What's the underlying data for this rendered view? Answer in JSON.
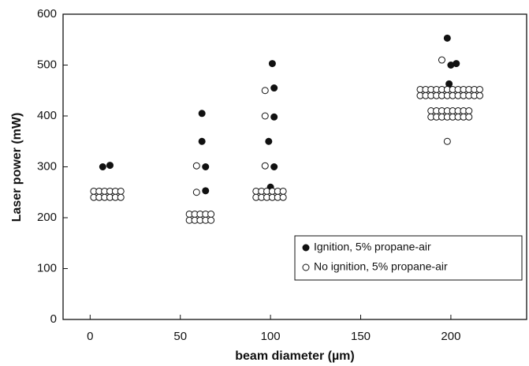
{
  "chart_data": {
    "type": "scatter",
    "x_label": "beam diameter (µm)",
    "y_label": "Laser power (mW)",
    "xlim": [
      -15,
      242
    ],
    "ylim": [
      0,
      600
    ],
    "xticks": [
      0,
      50,
      100,
      150,
      200
    ],
    "yticks": [
      0,
      100,
      200,
      300,
      400,
      500,
      600
    ],
    "legend": "lower right",
    "series": [
      {
        "name": "Ignition, 5% propane-air",
        "color": "#111111",
        "filled": true,
        "x": [
          7,
          11,
          62,
          62,
          64,
          64,
          101,
          102,
          102,
          99,
          102,
          100,
          198,
          200,
          203,
          199,
          199
        ],
        "y": [
          300,
          303,
          405,
          350,
          300,
          253,
          503,
          455,
          398,
          350,
          300,
          260,
          553,
          500,
          503,
          463,
          455
        ]
      },
      {
        "name": "No ignition, 5% propane-air",
        "color": "#111111",
        "filled": false,
        "x": [
          2,
          5,
          8,
          11,
          14,
          17,
          2,
          5,
          8,
          11,
          14,
          17,
          55,
          58,
          61,
          64,
          67,
          55,
          58,
          61,
          64,
          67,
          59,
          59,
          97,
          97,
          97,
          92,
          95,
          98,
          101,
          104,
          107,
          92,
          95,
          98,
          101,
          104,
          107,
          195,
          198,
          183,
          186,
          189,
          192,
          195,
          198,
          201,
          204,
          207,
          210,
          213,
          216,
          183,
          186,
          189,
          192,
          195,
          198,
          201,
          204,
          207,
          210,
          213,
          216,
          189,
          192,
          195,
          198,
          201,
          204,
          207,
          210,
          189,
          192,
          195,
          198,
          201,
          204,
          207,
          210
        ],
        "y": [
          252,
          252,
          252,
          252,
          252,
          252,
          240,
          240,
          240,
          240,
          240,
          240,
          207,
          207,
          207,
          207,
          207,
          195,
          195,
          195,
          195,
          195,
          302,
          250,
          450,
          400,
          302,
          252,
          252,
          252,
          252,
          252,
          252,
          240,
          240,
          240,
          240,
          240,
          240,
          510,
          350,
          452,
          452,
          452,
          452,
          452,
          452,
          452,
          452,
          452,
          452,
          452,
          452,
          440,
          440,
          440,
          440,
          440,
          440,
          440,
          440,
          440,
          440,
          440,
          440,
          410,
          410,
          410,
          410,
          410,
          410,
          410,
          410,
          398,
          398,
          398,
          398,
          398,
          398,
          398,
          398
        ]
      }
    ]
  }
}
